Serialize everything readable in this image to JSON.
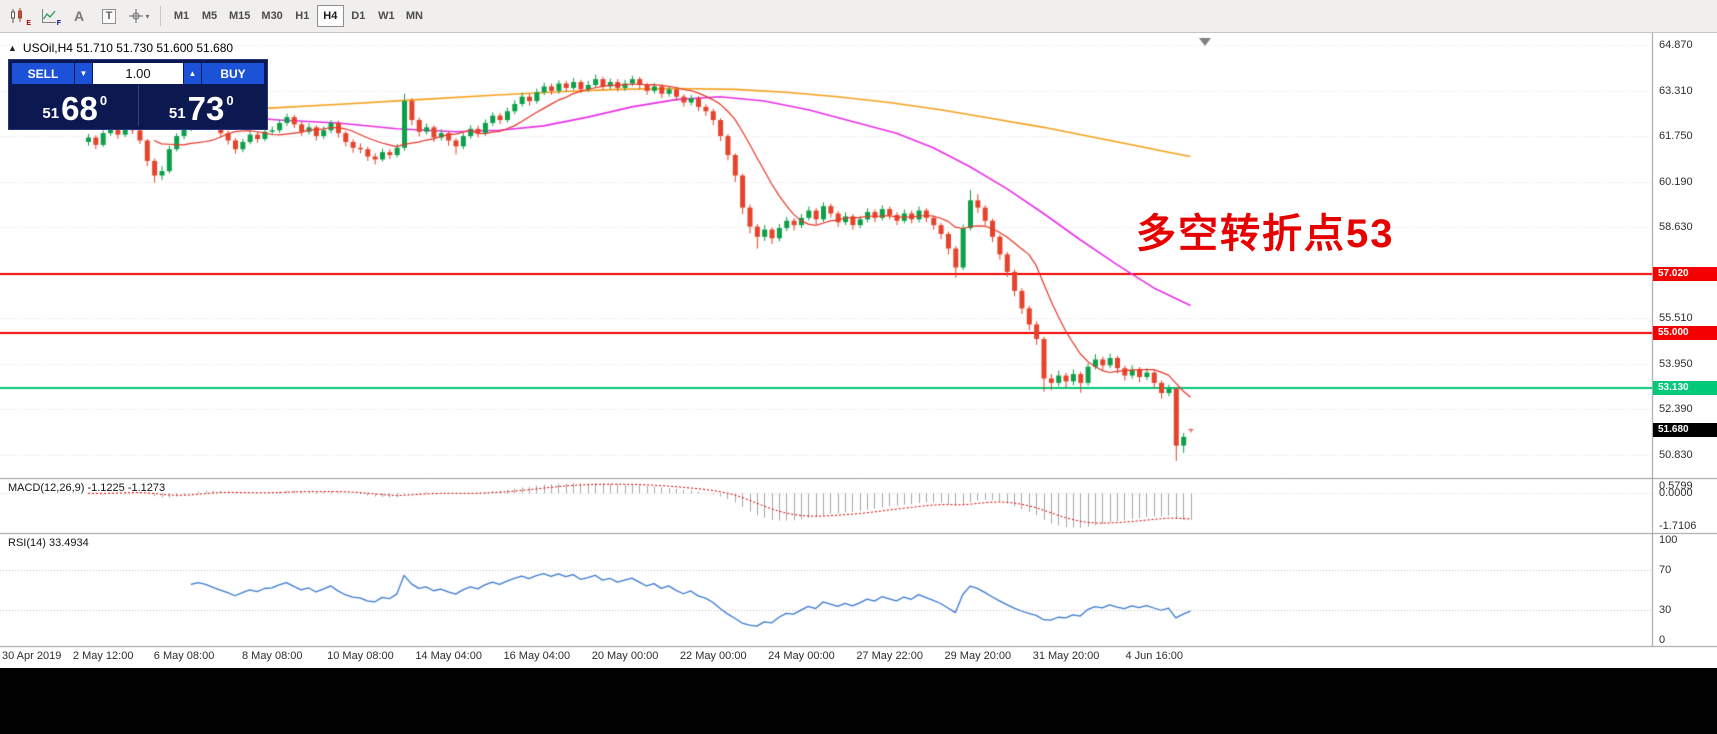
{
  "toolbar": {
    "icons": [
      {
        "name": "chart-window-icon",
        "sub": "E"
      },
      {
        "name": "indicators-icon",
        "sub": "F"
      },
      {
        "name": "text-tool-icon",
        "glyph": "A"
      },
      {
        "name": "textbox-tool-icon",
        "glyph": "T"
      },
      {
        "name": "crosshair-tool-icon",
        "chevron": "▾"
      }
    ],
    "timeframes": [
      "M1",
      "M5",
      "M15",
      "M30",
      "H1",
      "H4",
      "D1",
      "W1",
      "MN"
    ],
    "active_timeframe": "H4"
  },
  "header": {
    "collapse_arrow": "▲",
    "symbol_info": "USOil,H4  51.710 51.730 51.600 51.680"
  },
  "trade_panel": {
    "sell_label": "SELL",
    "buy_label": "BUY",
    "volume": "1.00",
    "spinner_down": "▼",
    "spinner_up": "▲",
    "bid_small": "51",
    "bid_big": "68",
    "bid_sup": "0",
    "ask_small": "51",
    "ask_big": "73",
    "ask_sup": "0"
  },
  "annotation": {
    "text": "多空转折点53",
    "color": "#e60000"
  },
  "chart_data": {
    "type": "candlestick",
    "symbol": "USOil",
    "timeframe": "H4",
    "bull_color": "#0ca04a",
    "bear_color": "#e5432b",
    "ohlc": [
      [
        61.55,
        61.82,
        61.42,
        61.7
      ],
      [
        61.7,
        61.78,
        61.3,
        61.45
      ],
      [
        61.45,
        61.95,
        61.38,
        61.85
      ],
      [
        61.85,
        62.22,
        61.76,
        62.1
      ],
      [
        62.1,
        62.18,
        61.66,
        61.8
      ],
      [
        61.8,
        62.38,
        61.72,
        62.25
      ],
      [
        62.25,
        62.33,
        61.82,
        61.95
      ],
      [
        61.95,
        62.05,
        61.48,
        61.6
      ],
      [
        61.6,
        61.65,
        60.72,
        60.9
      ],
      [
        60.9,
        60.98,
        60.16,
        60.4
      ],
      [
        60.4,
        60.72,
        60.25,
        60.55
      ],
      [
        60.55,
        61.42,
        60.48,
        61.3
      ],
      [
        61.3,
        61.85,
        61.22,
        61.75
      ],
      [
        61.75,
        62.12,
        61.64,
        62.0
      ],
      [
        62.0,
        62.42,
        61.92,
        62.3
      ],
      [
        62.3,
        62.62,
        62.2,
        62.5
      ],
      [
        62.5,
        62.58,
        62.22,
        62.35
      ],
      [
        62.35,
        62.44,
        61.98,
        62.1
      ],
      [
        62.1,
        62.18,
        61.72,
        61.85
      ],
      [
        61.85,
        61.94,
        61.46,
        61.6
      ],
      [
        61.6,
        61.68,
        61.15,
        61.3
      ],
      [
        61.3,
        61.66,
        61.2,
        61.55
      ],
      [
        61.55,
        61.92,
        61.47,
        61.8
      ],
      [
        61.8,
        61.9,
        61.52,
        61.65
      ],
      [
        61.65,
        62.02,
        61.57,
        61.9
      ],
      [
        61.9,
        62.08,
        61.78,
        61.95
      ],
      [
        61.95,
        62.32,
        61.86,
        62.2
      ],
      [
        62.2,
        62.52,
        62.1,
        62.4
      ],
      [
        62.4,
        62.48,
        62.02,
        62.15
      ],
      [
        62.15,
        62.24,
        61.76,
        61.9
      ],
      [
        61.9,
        62.18,
        61.8,
        62.05
      ],
      [
        62.05,
        62.12,
        61.6,
        61.75
      ],
      [
        61.75,
        62.08,
        61.66,
        61.95
      ],
      [
        61.95,
        62.3,
        61.85,
        62.2
      ],
      [
        62.2,
        62.28,
        61.7,
        61.85
      ],
      [
        61.85,
        61.92,
        61.4,
        61.55
      ],
      [
        61.55,
        61.64,
        61.18,
        61.35
      ],
      [
        61.35,
        61.5,
        61.16,
        61.3
      ],
      [
        61.3,
        61.38,
        60.9,
        61.05
      ],
      [
        61.05,
        61.16,
        60.78,
        60.95
      ],
      [
        60.95,
        61.32,
        60.88,
        61.2
      ],
      [
        61.2,
        61.3,
        60.96,
        61.1
      ],
      [
        61.1,
        61.48,
        61.02,
        61.35
      ],
      [
        61.35,
        63.2,
        61.25,
        62.95
      ],
      [
        62.95,
        63.05,
        62.12,
        62.3
      ],
      [
        62.3,
        62.38,
        61.74,
        61.9
      ],
      [
        61.9,
        62.18,
        61.8,
        62.05
      ],
      [
        62.05,
        62.12,
        61.55,
        61.7
      ],
      [
        61.7,
        61.98,
        61.6,
        61.85
      ],
      [
        61.85,
        61.93,
        61.42,
        61.6
      ],
      [
        61.6,
        61.68,
        61.12,
        61.4
      ],
      [
        61.4,
        61.86,
        61.3,
        61.75
      ],
      [
        61.75,
        62.12,
        61.66,
        62.0
      ],
      [
        62.0,
        62.1,
        61.7,
        61.85
      ],
      [
        61.85,
        62.32,
        61.76,
        62.2
      ],
      [
        62.2,
        62.56,
        62.1,
        62.45
      ],
      [
        62.45,
        62.54,
        62.16,
        62.3
      ],
      [
        62.3,
        62.72,
        62.22,
        62.6
      ],
      [
        62.6,
        62.98,
        62.5,
        62.85
      ],
      [
        62.85,
        63.24,
        62.76,
        63.1
      ],
      [
        63.1,
        63.2,
        62.8,
        62.95
      ],
      [
        62.95,
        63.38,
        62.86,
        63.25
      ],
      [
        63.25,
        63.58,
        63.15,
        63.45
      ],
      [
        63.45,
        63.55,
        63.16,
        63.3
      ],
      [
        63.3,
        63.66,
        63.2,
        63.55
      ],
      [
        63.55,
        63.64,
        63.26,
        63.4
      ],
      [
        63.4,
        63.74,
        63.32,
        63.6
      ],
      [
        63.6,
        63.68,
        63.22,
        63.35
      ],
      [
        63.35,
        63.64,
        63.26,
        63.5
      ],
      [
        63.5,
        63.85,
        63.42,
        63.7
      ],
      [
        63.7,
        63.78,
        63.32,
        63.45
      ],
      [
        63.45,
        63.72,
        63.36,
        63.6
      ],
      [
        63.6,
        63.7,
        63.28,
        63.4
      ],
      [
        63.4,
        63.68,
        63.3,
        63.55
      ],
      [
        63.55,
        63.82,
        63.46,
        63.7
      ],
      [
        63.7,
        63.78,
        63.36,
        63.5
      ],
      [
        63.5,
        63.58,
        63.16,
        63.3
      ],
      [
        63.3,
        63.56,
        63.2,
        63.45
      ],
      [
        63.45,
        63.52,
        63.06,
        63.2
      ],
      [
        63.2,
        63.46,
        63.1,
        63.35
      ],
      [
        63.35,
        63.42,
        62.96,
        63.1
      ],
      [
        63.1,
        63.18,
        62.76,
        62.9
      ],
      [
        62.9,
        63.16,
        62.8,
        63.05
      ],
      [
        63.05,
        63.12,
        62.6,
        62.75
      ],
      [
        62.75,
        62.84,
        62.44,
        62.6
      ],
      [
        62.6,
        62.68,
        62.12,
        62.3
      ],
      [
        62.3,
        62.36,
        61.58,
        61.75
      ],
      [
        61.75,
        61.82,
        60.92,
        61.1
      ],
      [
        61.1,
        61.16,
        60.18,
        60.4
      ],
      [
        60.4,
        60.46,
        59.08,
        59.3
      ],
      [
        59.3,
        59.4,
        58.42,
        58.65
      ],
      [
        58.65,
        58.74,
        57.9,
        58.3
      ],
      [
        58.3,
        58.7,
        58.16,
        58.55
      ],
      [
        58.55,
        58.62,
        58.05,
        58.25
      ],
      [
        58.25,
        58.74,
        58.15,
        58.6
      ],
      [
        58.6,
        58.98,
        58.5,
        58.85
      ],
      [
        58.85,
        58.94,
        58.52,
        58.7
      ],
      [
        58.7,
        59.08,
        58.6,
        58.95
      ],
      [
        58.95,
        59.34,
        58.86,
        59.2
      ],
      [
        59.2,
        59.28,
        58.74,
        58.9
      ],
      [
        58.9,
        59.48,
        58.8,
        59.35
      ],
      [
        59.35,
        59.44,
        58.96,
        59.1
      ],
      [
        59.1,
        59.18,
        58.64,
        58.8
      ],
      [
        58.8,
        59.14,
        58.7,
        59.0
      ],
      [
        59.0,
        59.08,
        58.54,
        58.7
      ],
      [
        58.7,
        59.02,
        58.6,
        58.9
      ],
      [
        58.9,
        59.28,
        58.8,
        59.15
      ],
      [
        59.15,
        59.24,
        58.8,
        58.95
      ],
      [
        58.95,
        59.38,
        58.86,
        59.25
      ],
      [
        59.25,
        59.34,
        58.9,
        59.05
      ],
      [
        59.05,
        59.14,
        58.7,
        58.85
      ],
      [
        58.85,
        59.24,
        58.76,
        59.1
      ],
      [
        59.1,
        59.2,
        58.76,
        58.9
      ],
      [
        58.9,
        59.34,
        58.8,
        59.2
      ],
      [
        59.2,
        59.28,
        58.8,
        58.95
      ],
      [
        58.95,
        59.02,
        58.54,
        58.7
      ],
      [
        58.7,
        58.78,
        58.22,
        58.4
      ],
      [
        58.4,
        58.48,
        57.7,
        57.9
      ],
      [
        57.9,
        57.98,
        56.9,
        57.25
      ],
      [
        57.25,
        58.72,
        57.16,
        58.6
      ],
      [
        58.6,
        59.9,
        58.52,
        59.55
      ],
      [
        59.55,
        59.76,
        59.12,
        59.3
      ],
      [
        59.3,
        59.38,
        58.68,
        58.85
      ],
      [
        58.85,
        58.92,
        58.12,
        58.3
      ],
      [
        58.3,
        58.38,
        57.52,
        57.7
      ],
      [
        57.7,
        57.78,
        56.92,
        57.1
      ],
      [
        57.1,
        57.18,
        56.26,
        56.45
      ],
      [
        56.45,
        56.54,
        55.66,
        55.85
      ],
      [
        55.85,
        55.94,
        55.1,
        55.3
      ],
      [
        55.3,
        55.4,
        54.6,
        54.8
      ],
      [
        54.8,
        54.88,
        53.0,
        53.45
      ],
      [
        53.45,
        53.6,
        53.05,
        53.3
      ],
      [
        53.3,
        53.72,
        53.18,
        53.55
      ],
      [
        53.55,
        53.64,
        53.12,
        53.35
      ],
      [
        53.35,
        53.76,
        53.22,
        53.6
      ],
      [
        53.6,
        53.68,
        52.96,
        53.3
      ],
      [
        53.3,
        53.98,
        53.2,
        53.85
      ],
      [
        53.85,
        54.28,
        53.76,
        54.1
      ],
      [
        54.1,
        54.2,
        53.72,
        53.9
      ],
      [
        53.9,
        54.3,
        53.8,
        54.15
      ],
      [
        54.15,
        54.22,
        53.62,
        53.8
      ],
      [
        53.8,
        53.88,
        53.38,
        53.55
      ],
      [
        53.55,
        53.9,
        53.44,
        53.75
      ],
      [
        53.75,
        53.84,
        53.32,
        53.5
      ],
      [
        53.5,
        53.8,
        53.4,
        53.65
      ],
      [
        53.65,
        53.74,
        53.12,
        53.3
      ],
      [
        53.3,
        53.38,
        52.76,
        52.95
      ],
      [
        52.95,
        53.24,
        52.84,
        53.1
      ],
      [
        53.1,
        53.16,
        50.63,
        51.15
      ],
      [
        51.15,
        51.58,
        50.9,
        51.45
      ],
      [
        51.71,
        51.73,
        51.6,
        51.68
      ]
    ],
    "overlays": [
      {
        "name": "ma-slow",
        "color": "#f6a21d",
        "width": 1.6,
        "points": [
          [
            24,
            62.7
          ],
          [
            35,
            62.85
          ],
          [
            45,
            63.0
          ],
          [
            55,
            63.15
          ],
          [
            65,
            63.28
          ],
          [
            72,
            63.35
          ],
          [
            80,
            63.38
          ],
          [
            88,
            63.35
          ],
          [
            95,
            63.25
          ],
          [
            102,
            63.1
          ],
          [
            109,
            62.9
          ],
          [
            116,
            62.65
          ],
          [
            123,
            62.35
          ],
          [
            130,
            62.05
          ],
          [
            137,
            61.7
          ],
          [
            143,
            61.4
          ],
          [
            147,
            61.2
          ],
          [
            150,
            61.05
          ]
        ]
      },
      {
        "name": "ma-medium",
        "color": "#e832e8",
        "width": 1.6,
        "points": [
          [
            18,
            62.45
          ],
          [
            26,
            62.3
          ],
          [
            34,
            62.2
          ],
          [
            42,
            62.0
          ],
          [
            50,
            61.9
          ],
          [
            56,
            61.95
          ],
          [
            62,
            62.1
          ],
          [
            68,
            62.4
          ],
          [
            74,
            62.75
          ],
          [
            80,
            63.0
          ],
          [
            86,
            63.1
          ],
          [
            92,
            62.95
          ],
          [
            98,
            62.65
          ],
          [
            104,
            62.25
          ],
          [
            110,
            61.85
          ],
          [
            115,
            61.35
          ],
          [
            120,
            60.7
          ],
          [
            125,
            59.95
          ],
          [
            130,
            59.1
          ],
          [
            135,
            58.2
          ],
          [
            140,
            57.35
          ],
          [
            145,
            56.55
          ],
          [
            150,
            55.95
          ]
        ]
      },
      {
        "name": "ma-fast",
        "color": "#e8392b",
        "width": 1.2,
        "period": 10
      }
    ],
    "hlines": [
      {
        "price": 57.02,
        "label": "57.020",
        "color": "#f40000"
      },
      {
        "price": 55.0,
        "label": "55.000",
        "color": "#f40000"
      },
      {
        "price": 53.13,
        "label": "53.130",
        "color": "#00c97a"
      }
    ],
    "current_price": {
      "price": 51.68,
      "label": "51.680",
      "bg": "#000000"
    },
    "price_axis": {
      "ticks": [
        "64.870",
        "63.310",
        "61.750",
        "60.190",
        "58.630",
        "55.510",
        "53.950",
        "52.390",
        "50.830"
      ]
    },
    "time_axis": [
      {
        "i": -11,
        "label": "30 Apr 2019"
      },
      {
        "i": 2,
        "label": "2 May 12:00"
      },
      {
        "i": 13,
        "label": "6 May 08:00"
      },
      {
        "i": 25,
        "label": "8 May 08:00"
      },
      {
        "i": 37,
        "label": "10 May 08:00"
      },
      {
        "i": 49,
        "label": "14 May 04:00"
      },
      {
        "i": 61,
        "label": "16 May 04:00"
      },
      {
        "i": 73,
        "label": "20 May 00:00"
      },
      {
        "i": 85,
        "label": "22 May 00:00"
      },
      {
        "i": 97,
        "label": "24 May 00:00"
      },
      {
        "i": 109,
        "label": "27 May 22:00"
      },
      {
        "i": 121,
        "label": "29 May 20:00"
      },
      {
        "i": 133,
        "label": "31 May 20:00"
      },
      {
        "i": 145,
        "label": "4 Jun 16:00"
      }
    ],
    "indicators": [
      {
        "type": "MACD",
        "label": "MACD(12,26,9) -1.1225 -1.1273",
        "params": [
          12,
          26,
          9
        ],
        "axis_max": "0.5799",
        "axis_zero": "0.0000",
        "axis_min": "-1.7106",
        "histogram_color": "#a8a8a8",
        "signal_color": "#e00000"
      },
      {
        "type": "RSI",
        "label": "RSI(14) 33.4934",
        "period": 14,
        "line_color": "#3e7ad2",
        "levels": [
          70,
          30
        ],
        "axis": [
          "100",
          "70",
          "30",
          "0"
        ]
      }
    ]
  }
}
